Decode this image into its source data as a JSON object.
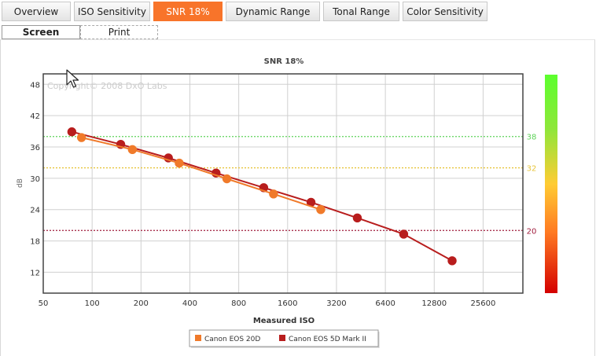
{
  "tabs": [
    {
      "label": "Overview"
    },
    {
      "label": "ISO Sensitivity"
    },
    {
      "label": "SNR 18%"
    },
    {
      "label": "Dynamic Range"
    },
    {
      "label": "Tonal Range"
    },
    {
      "label": "Color Sensitivity"
    }
  ],
  "active_tab": 2,
  "subtabs": [
    {
      "label": "Screen"
    },
    {
      "label": "Print"
    }
  ],
  "watermark": "Copyright© 2008 DxO Labs",
  "colors": {
    "accent": "#f8742a",
    "series_1": "#f07a2a",
    "series_2": "#b81d1d",
    "threshold_38": "#5fd35a",
    "threshold_32": "#e7c43a",
    "threshold_20": "#a01c3c"
  },
  "chart_data": {
    "type": "line",
    "title": "SNR 18%",
    "xlabel": "Measured ISO",
    "ylabel": "dB",
    "x_scale": "log2",
    "x_ticks": [
      "50",
      "100",
      "200",
      "400",
      "800",
      "1600",
      "3200",
      "6400",
      "12800",
      "25600"
    ],
    "y_ticks": [
      "12",
      "18",
      "24",
      "30",
      "36",
      "42",
      "48"
    ],
    "xlim": [
      50,
      45000
    ],
    "ylim": [
      8,
      50
    ],
    "grid": true,
    "legend_position": "bottom-center",
    "series": [
      {
        "name": "Canon EOS 20D",
        "color": "#f07a2a",
        "x": [
          86,
          177,
          344,
          676,
          1310,
          2560
        ],
        "y": [
          37.8,
          35.5,
          32.9,
          29.9,
          27.0,
          24.0
        ]
      },
      {
        "name": "Canon EOS 5D Mark II",
        "color": "#b81d1d",
        "x": [
          75,
          150,
          295,
          580,
          1140,
          2230,
          4300,
          8300,
          16500
        ],
        "y": [
          38.9,
          36.5,
          33.9,
          31.0,
          28.2,
          25.4,
          22.4,
          19.3,
          14.2
        ]
      }
    ],
    "reference_lines": [
      {
        "value": 38,
        "label": "38",
        "color": "#5fd35a"
      },
      {
        "value": 32,
        "label": "32",
        "color": "#e7c43a"
      },
      {
        "value": 20,
        "label": "20",
        "color": "#a01c3c"
      }
    ]
  }
}
